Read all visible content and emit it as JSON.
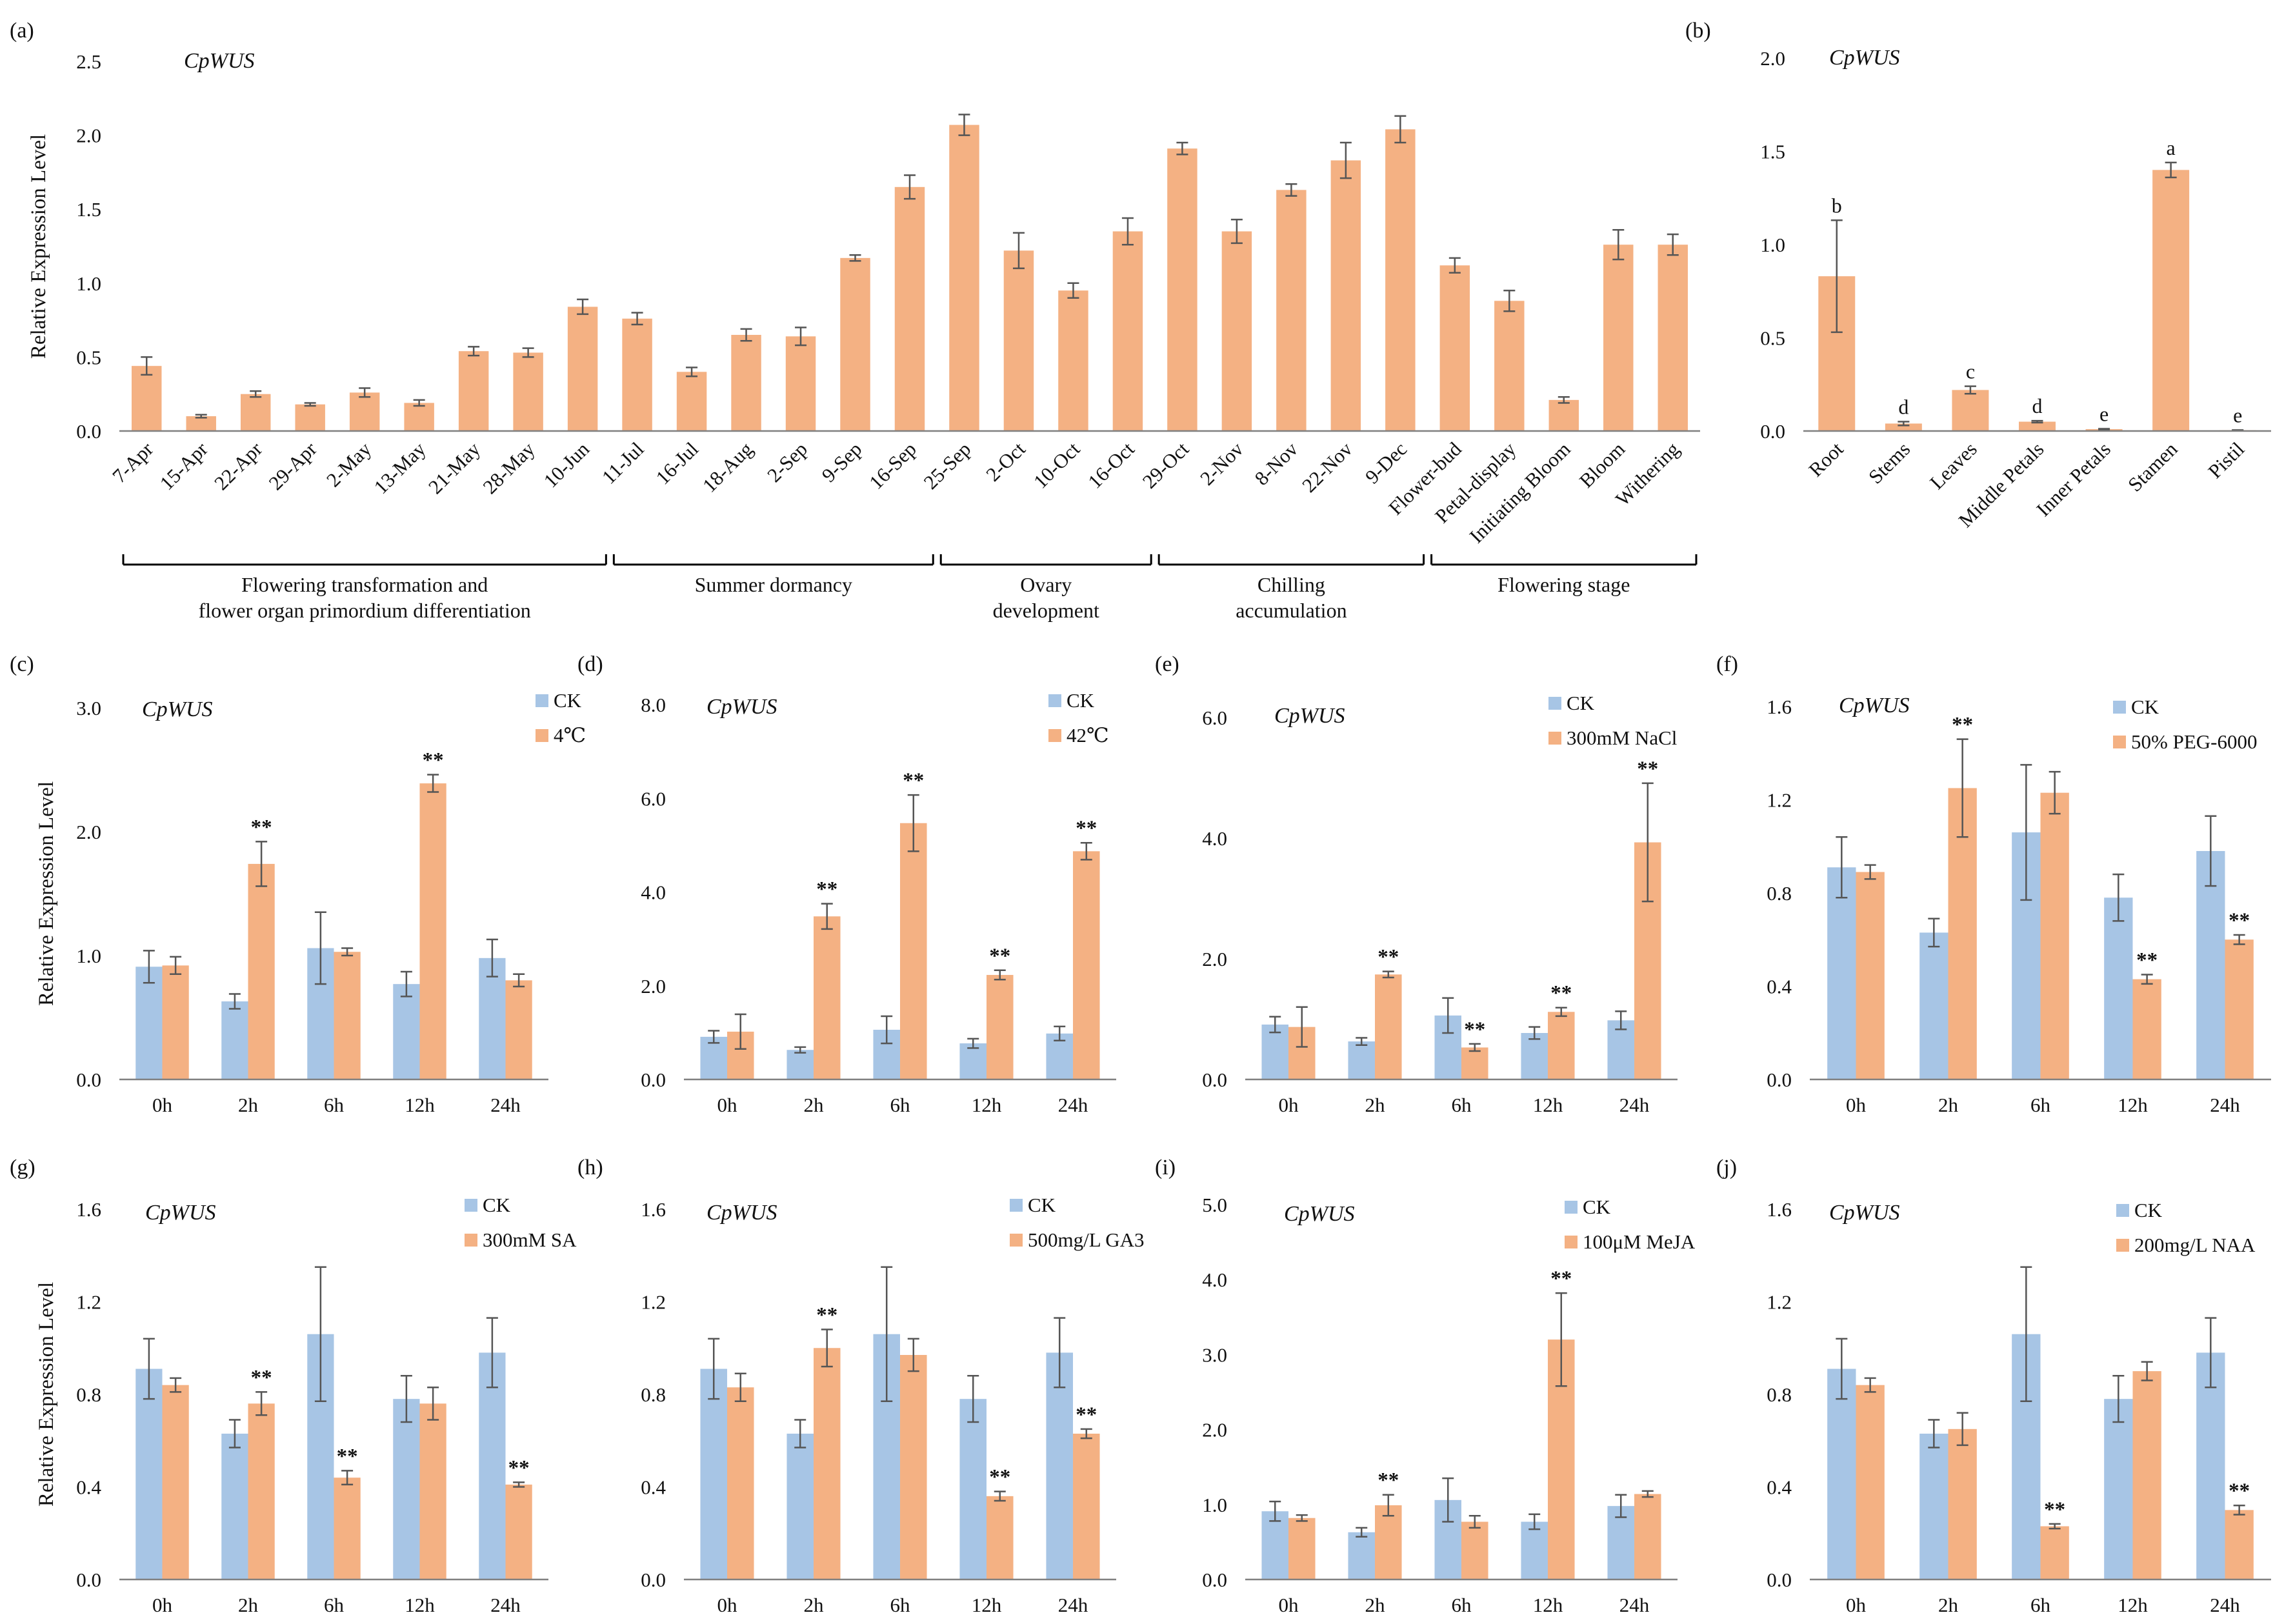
{
  "colors": {
    "ck": "#a7c5e5",
    "treat": "#f4b183",
    "axis": "#808080",
    "err": "#555555",
    "text": "#111111"
  },
  "chart_data": [
    {
      "id": "a",
      "label": "(a)",
      "type": "bar",
      "title": "CpWUS",
      "ylabel": "Relative  Expression Level",
      "ylim": [
        0,
        2.5
      ],
      "yticks": [
        "0.0",
        "0.5",
        "1.0",
        "1.5",
        "2.0",
        "2.5"
      ],
      "categories": [
        "7-Apr",
        "15-Apr",
        "22-Apr",
        "29-Apr",
        "2-May",
        "13-May",
        "21-May",
        "28-May",
        "10-Jun",
        "11-Jul",
        "16-Jul",
        "18-Aug",
        "2-Sep",
        "9-Sep",
        "16-Sep",
        "25-Sep",
        "2-Oct",
        "10-Oct",
        "16-Oct",
        "29-Oct",
        "2-Nov",
        "8-Nov",
        "22-Nov",
        "9-Dec",
        "Flower-bud",
        "Petal-display",
        "Initiating Bloom",
        "Bloom",
        "Withering"
      ],
      "series": [
        {
          "name": "CpWUS",
          "values": [
            0.44,
            0.1,
            0.25,
            0.18,
            0.26,
            0.19,
            0.54,
            0.53,
            0.84,
            0.76,
            0.4,
            0.65,
            0.64,
            1.17,
            1.65,
            2.07,
            1.22,
            0.95,
            1.35,
            1.91,
            1.35,
            1.63,
            1.83,
            2.04,
            1.12,
            0.88,
            0.21,
            1.26,
            1.26
          ],
          "errors": [
            0.06,
            0.01,
            0.02,
            0.01,
            0.03,
            0.02,
            0.03,
            0.03,
            0.05,
            0.04,
            0.03,
            0.04,
            0.06,
            0.02,
            0.08,
            0.07,
            0.12,
            0.05,
            0.09,
            0.04,
            0.08,
            0.04,
            0.12,
            0.09,
            0.05,
            0.07,
            0.02,
            0.1,
            0.07
          ]
        }
      ],
      "groups": [
        {
          "label": "Flowering transformation and\nflower organ primordium differentiation",
          "from": 0,
          "to": 8
        },
        {
          "label": "Summer dormancy",
          "from": 9,
          "to": 14
        },
        {
          "label": "Ovary\ndevelopment",
          "from": 15,
          "to": 18
        },
        {
          "label": "Chilling\naccumulation",
          "from": 19,
          "to": 23
        },
        {
          "label": "Flowering stage",
          "from": 24,
          "to": 28
        }
      ]
    },
    {
      "id": "b",
      "label": "(b)",
      "type": "bar",
      "title": "CpWUS",
      "ylabel": "",
      "ylim": [
        0,
        2.0
      ],
      "yticks": [
        "0.0",
        "0.5",
        "1.0",
        "1.5",
        "2.0"
      ],
      "categories": [
        "Root",
        "Stems",
        "Leaves",
        "Middle Petals",
        "Inner Petals",
        "Stamen",
        "Pistil"
      ],
      "series": [
        {
          "name": "CpWUS",
          "values": [
            0.83,
            0.04,
            0.22,
            0.05,
            0.01,
            1.4,
            0.004
          ],
          "errors": [
            0.3,
            0.01,
            0.02,
            0.005,
            0.002,
            0.04,
            0.001
          ]
        }
      ],
      "annotations": [
        "b",
        "d",
        "c",
        "d",
        "e",
        "a",
        "e"
      ]
    },
    {
      "id": "c",
      "label": "(c)",
      "type": "bar",
      "title": "CpWUS",
      "ylabel": "Relative  Expression Level",
      "ylim": [
        0,
        3.0
      ],
      "yticks": [
        "0.0",
        "1.0",
        "2.0",
        "3.0"
      ],
      "categories": [
        "0h",
        "2h",
        "6h",
        "12h",
        "24h"
      ],
      "series": [
        {
          "name": "CK",
          "values": [
            0.91,
            0.63,
            1.06,
            0.77,
            0.98
          ],
          "errors": [
            0.13,
            0.06,
            0.29,
            0.1,
            0.15
          ]
        },
        {
          "name": "4℃",
          "values": [
            0.92,
            1.74,
            1.03,
            2.39,
            0.8
          ],
          "errors": [
            0.07,
            0.18,
            0.03,
            0.07,
            0.05
          ]
        }
      ],
      "marks": [
        "",
        "**",
        "",
        "**",
        ""
      ]
    },
    {
      "id": "d",
      "label": "(d)",
      "type": "bar",
      "title": "CpWUS",
      "ylabel": "",
      "ylim": [
        0,
        8.0
      ],
      "yticks": [
        "0.0",
        "2.0",
        "4.0",
        "6.0",
        "8.0"
      ],
      "categories": [
        "0h",
        "2h",
        "6h",
        "12h",
        "24h"
      ],
      "series": [
        {
          "name": "CK",
          "values": [
            0.91,
            0.63,
            1.06,
            0.77,
            0.98
          ],
          "errors": [
            0.13,
            0.06,
            0.29,
            0.1,
            0.15
          ]
        },
        {
          "name": "42℃",
          "values": [
            1.02,
            3.48,
            5.47,
            2.23,
            4.87
          ],
          "errors": [
            0.37,
            0.27,
            0.6,
            0.1,
            0.18
          ]
        }
      ],
      "marks": [
        "",
        "**",
        "**",
        "**",
        "**"
      ]
    },
    {
      "id": "e",
      "label": "(e)",
      "type": "bar",
      "title": "CpWUS",
      "ylabel": "",
      "ylim": [
        0,
        6.0
      ],
      "yticks": [
        "0.0",
        "2.0",
        "4.0",
        "6.0"
      ],
      "categories": [
        "0h",
        "2h",
        "6h",
        "12h",
        "24h"
      ],
      "series": [
        {
          "name": "CK",
          "values": [
            0.91,
            0.63,
            1.06,
            0.77,
            0.98
          ],
          "errors": [
            0.13,
            0.06,
            0.29,
            0.1,
            0.15
          ]
        },
        {
          "name": "300mM NaCl",
          "values": [
            0.87,
            1.74,
            0.53,
            1.12,
            3.93
          ],
          "errors": [
            0.33,
            0.05,
            0.06,
            0.07,
            0.98
          ]
        }
      ],
      "marks": [
        "",
        "**",
        "**",
        "**",
        "**"
      ]
    },
    {
      "id": "f",
      "label": "(f)",
      "type": "bar",
      "title": "CpWUS",
      "ylabel": "",
      "ylim": [
        0,
        1.6
      ],
      "yticks": [
        "0.0",
        "0.4",
        "0.8",
        "1.2",
        "1.6"
      ],
      "categories": [
        "0h",
        "2h",
        "6h",
        "12h",
        "24h"
      ],
      "series": [
        {
          "name": "CK",
          "values": [
            0.91,
            0.63,
            1.06,
            0.78,
            0.98
          ],
          "errors": [
            0.13,
            0.06,
            0.29,
            0.1,
            0.15
          ]
        },
        {
          "name": "50% PEG-6000",
          "values": [
            0.89,
            1.25,
            1.23,
            0.43,
            0.6
          ],
          "errors": [
            0.03,
            0.21,
            0.09,
            0.02,
            0.02
          ]
        }
      ],
      "marks": [
        "",
        "**",
        "",
        "**",
        "**"
      ]
    },
    {
      "id": "g",
      "label": "(g)",
      "type": "bar",
      "title": "CpWUS",
      "ylabel": "Relative  Expression Level",
      "ylim": [
        0,
        1.6
      ],
      "yticks": [
        "0.0",
        "0.4",
        "0.8",
        "1.2",
        "1.6"
      ],
      "categories": [
        "0h",
        "2h",
        "6h",
        "12h",
        "24h"
      ],
      "series": [
        {
          "name": "CK",
          "values": [
            0.91,
            0.63,
            1.06,
            0.78,
            0.98
          ],
          "errors": [
            0.13,
            0.06,
            0.29,
            0.1,
            0.15
          ]
        },
        {
          "name": "300mM SA",
          "values": [
            0.84,
            0.76,
            0.44,
            0.76,
            0.41
          ],
          "errors": [
            0.03,
            0.05,
            0.03,
            0.07,
            0.01
          ]
        }
      ],
      "marks": [
        "",
        "**",
        "**",
        "",
        "**"
      ]
    },
    {
      "id": "h",
      "label": "(h)",
      "type": "bar",
      "title": "CpWUS",
      "ylabel": "",
      "ylim": [
        0,
        1.6
      ],
      "yticks": [
        "0.0",
        "0.4",
        "0.8",
        "1.2",
        "1.6"
      ],
      "categories": [
        "0h",
        "2h",
        "6h",
        "12h",
        "24h"
      ],
      "series": [
        {
          "name": "CK",
          "values": [
            0.91,
            0.63,
            1.06,
            0.78,
            0.98
          ],
          "errors": [
            0.13,
            0.06,
            0.29,
            0.1,
            0.15
          ]
        },
        {
          "name": "500mg/L GA3",
          "values": [
            0.83,
            1.0,
            0.97,
            0.36,
            0.63
          ],
          "errors": [
            0.06,
            0.08,
            0.07,
            0.02,
            0.02
          ]
        }
      ],
      "marks": [
        "",
        "**",
        "",
        "**",
        "**"
      ]
    },
    {
      "id": "i",
      "label": "(i)",
      "type": "bar",
      "title": "CpWUS",
      "ylabel": "",
      "ylim": [
        0,
        5.0
      ],
      "yticks": [
        "0.0",
        "1.0",
        "2.0",
        "3.0",
        "4.0",
        "5.0"
      ],
      "categories": [
        "0h",
        "2h",
        "6h",
        "12h",
        "24h"
      ],
      "series": [
        {
          "name": "CK",
          "values": [
            0.91,
            0.63,
            1.06,
            0.77,
            0.98
          ],
          "errors": [
            0.13,
            0.06,
            0.29,
            0.1,
            0.15
          ]
        },
        {
          "name": "100μM MeJA",
          "values": [
            0.82,
            0.99,
            0.77,
            3.2,
            1.14
          ],
          "errors": [
            0.04,
            0.14,
            0.08,
            0.62,
            0.04
          ]
        }
      ],
      "marks": [
        "",
        "**",
        "",
        "**",
        ""
      ]
    },
    {
      "id": "j",
      "label": "(j)",
      "type": "bar",
      "title": "CpWUS",
      "ylabel": "",
      "ylim": [
        0,
        1.6
      ],
      "yticks": [
        "0.0",
        "0.4",
        "0.8",
        "1.2",
        "1.6"
      ],
      "categories": [
        "0h",
        "2h",
        "6h",
        "12h",
        "24h"
      ],
      "series": [
        {
          "name": "CK",
          "values": [
            0.91,
            0.63,
            1.06,
            0.78,
            0.98
          ],
          "errors": [
            0.13,
            0.06,
            0.29,
            0.1,
            0.15
          ]
        },
        {
          "name": "200mg/L NAA",
          "values": [
            0.84,
            0.65,
            0.23,
            0.9,
            0.3
          ],
          "errors": [
            0.03,
            0.07,
            0.01,
            0.04,
            0.02
          ]
        }
      ],
      "marks": [
        "",
        "",
        "**",
        "",
        "**"
      ]
    }
  ]
}
